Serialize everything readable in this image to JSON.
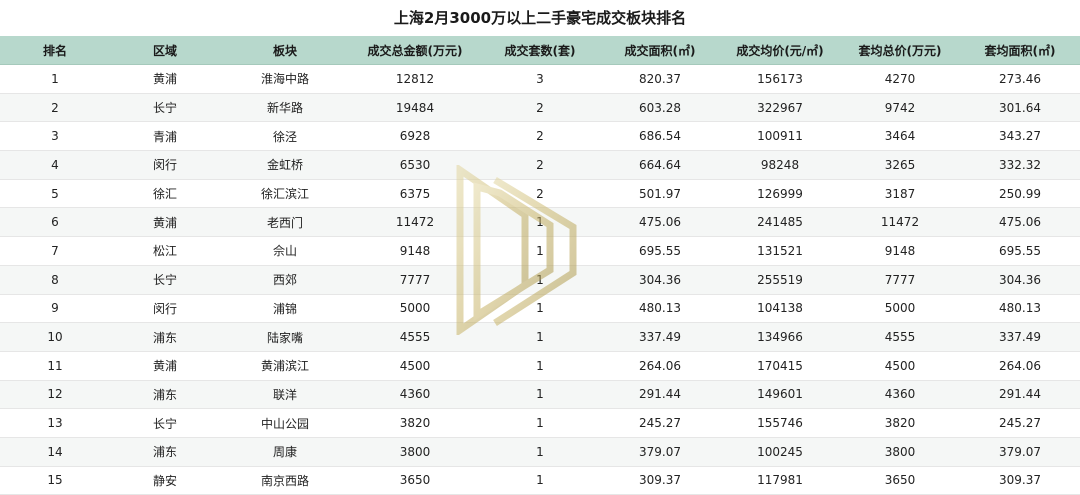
{
  "title": "上海2月3000万以上二手豪宅成交板块排名",
  "columns": [
    "排名",
    "区域",
    "板块",
    "成交总金额(万元)",
    "成交套数(套)",
    "成交面积(㎡)",
    "成交均价(元/㎡)",
    "套均总价(万元)",
    "套均面积(㎡)"
  ],
  "rows": [
    [
      "1",
      "黄浦",
      "淮海中路",
      "12812",
      "3",
      "820.37",
      "156173",
      "4270",
      "273.46"
    ],
    [
      "2",
      "长宁",
      "新华路",
      "19484",
      "2",
      "603.28",
      "322967",
      "9742",
      "301.64"
    ],
    [
      "3",
      "青浦",
      "徐泾",
      "6928",
      "2",
      "686.54",
      "100911",
      "3464",
      "343.27"
    ],
    [
      "4",
      "闵行",
      "金虹桥",
      "6530",
      "2",
      "664.64",
      "98248",
      "3265",
      "332.32"
    ],
    [
      "5",
      "徐汇",
      "徐汇滨江",
      "6375",
      "2",
      "501.97",
      "126999",
      "3187",
      "250.99"
    ],
    [
      "6",
      "黄浦",
      "老西门",
      "11472",
      "1",
      "475.06",
      "241485",
      "11472",
      "475.06"
    ],
    [
      "7",
      "松江",
      "佘山",
      "9148",
      "1",
      "695.55",
      "131521",
      "9148",
      "695.55"
    ],
    [
      "8",
      "长宁",
      "西郊",
      "7777",
      "1",
      "304.36",
      "255519",
      "7777",
      "304.36"
    ],
    [
      "9",
      "闵行",
      "浦锦",
      "5000",
      "1",
      "480.13",
      "104138",
      "5000",
      "480.13"
    ],
    [
      "10",
      "浦东",
      "陆家嘴",
      "4555",
      "1",
      "337.49",
      "134966",
      "4555",
      "337.49"
    ],
    [
      "11",
      "黄浦",
      "黄浦滨江",
      "4500",
      "1",
      "264.06",
      "170415",
      "4500",
      "264.06"
    ],
    [
      "12",
      "浦东",
      "联洋",
      "4360",
      "1",
      "291.44",
      "149601",
      "4360",
      "291.44"
    ],
    [
      "13",
      "长宁",
      "中山公园",
      "3820",
      "1",
      "245.27",
      "155746",
      "3820",
      "245.27"
    ],
    [
      "14",
      "浦东",
      "周康",
      "3800",
      "1",
      "379.07",
      "100245",
      "3800",
      "379.07"
    ],
    [
      "15",
      "静安",
      "南京西路",
      "3650",
      "1",
      "309.37",
      "117981",
      "3650",
      "309.37"
    ]
  ],
  "colors": {
    "header_bg": "#b7d8cc",
    "watermark_gold": "#c9b56a"
  },
  "watermark_icon": "gold-chevron-logo-icon"
}
